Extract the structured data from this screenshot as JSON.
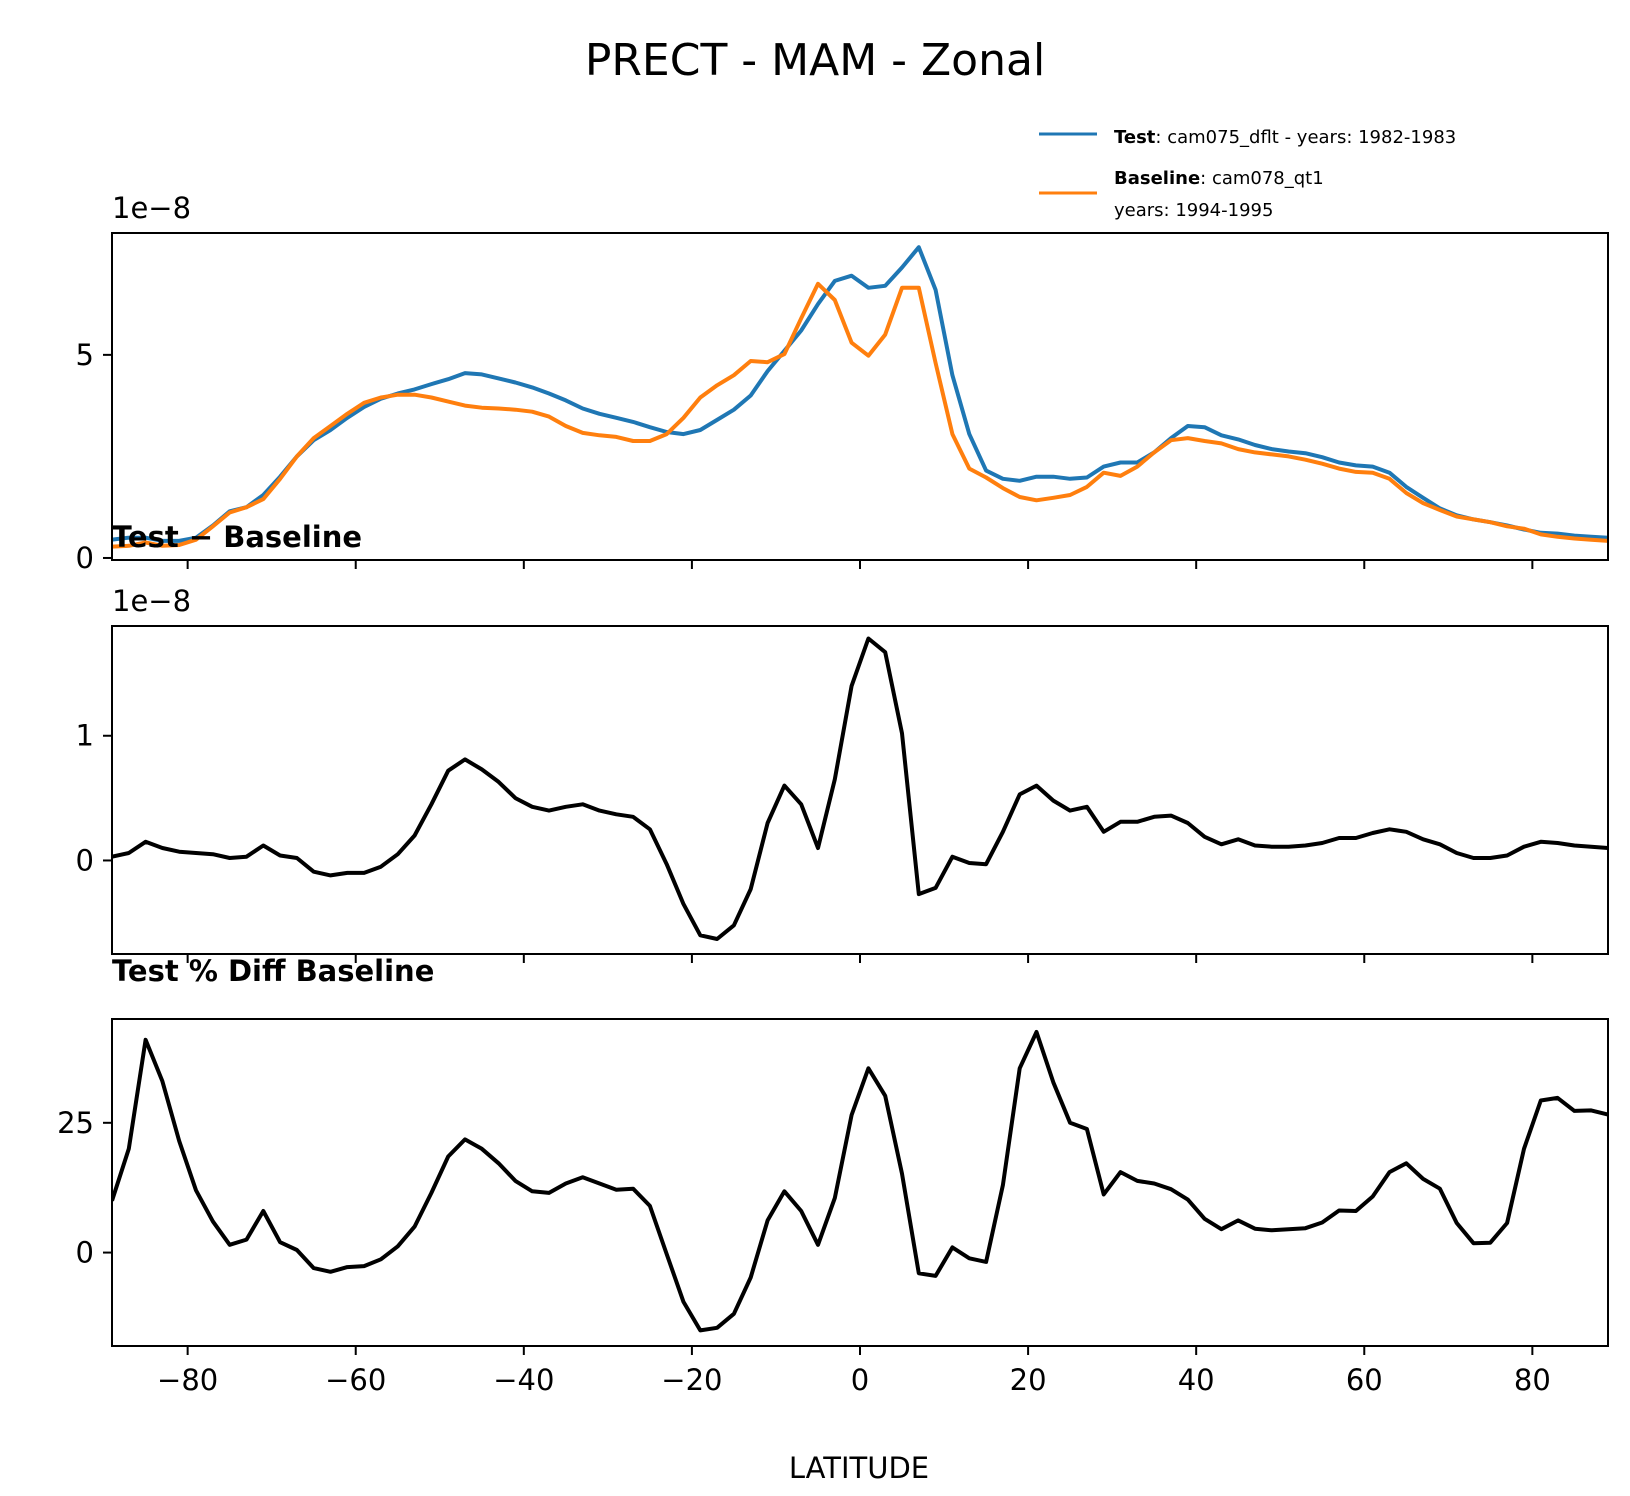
{
  "chart_data": [
    {
      "type": "line",
      "title": "PRECT - MAM - Zonal",
      "offset_label": "1e−8",
      "xlim": [
        -89,
        89
      ],
      "ylim": [
        -0.05,
        8.0
      ],
      "yticks": [
        0,
        5
      ],
      "ytick_labels": [
        "0",
        "5"
      ],
      "legend": {
        "position": "top-right",
        "entries": [
          {
            "bold": "Test",
            "rest": ": cam075_dflt - years: 1982-1983",
            "line2": "",
            "color": "#1f77b4"
          },
          {
            "bold": "Baseline",
            "rest": ": cam078_qt1",
            "line2": "years: 1994-1995",
            "color": "#ff7f0e"
          }
        ]
      },
      "x": [
        -89,
        -87,
        -85,
        -83,
        -81,
        -79,
        -77,
        -75,
        -73,
        -71,
        -69,
        -67,
        -65,
        -63,
        -61,
        -59,
        -57,
        -55,
        -53,
        -51,
        -49,
        -47,
        -45,
        -43,
        -41,
        -39,
        -37,
        -35,
        -33,
        -31,
        -29,
        -27,
        -25,
        -23,
        -21,
        -19,
        -17,
        -15,
        -13,
        -11,
        -9,
        -7,
        -5,
        -3,
        -1,
        1,
        3,
        5,
        7,
        9,
        11,
        13,
        15,
        17,
        19,
        21,
        23,
        25,
        27,
        29,
        31,
        33,
        35,
        37,
        39,
        41,
        43,
        45,
        47,
        49,
        51,
        53,
        55,
        57,
        59,
        61,
        63,
        65,
        67,
        69,
        71,
        73,
        75,
        77,
        79,
        81,
        83,
        85,
        87,
        89
      ],
      "series": [
        {
          "name": "Test",
          "color": "#1f77b4",
          "values": [
            0.45,
            0.5,
            0.5,
            0.42,
            0.42,
            0.5,
            0.8,
            1.15,
            1.25,
            1.55,
            2.0,
            2.5,
            2.9,
            3.15,
            3.45,
            3.72,
            3.92,
            4.05,
            4.15,
            4.28,
            4.4,
            4.55,
            4.52,
            4.42,
            4.32,
            4.2,
            4.05,
            3.88,
            3.68,
            3.55,
            3.45,
            3.35,
            3.22,
            3.1,
            3.05,
            3.15,
            3.4,
            3.65,
            4.0,
            4.6,
            5.1,
            5.6,
            6.25,
            6.82,
            6.95,
            6.65,
            6.7,
            7.15,
            7.65,
            6.6,
            4.5,
            3.05,
            2.15,
            1.95,
            1.9,
            2.0,
            2.0,
            1.95,
            1.98,
            2.25,
            2.35,
            2.35,
            2.6,
            2.95,
            3.25,
            3.22,
            3.02,
            2.92,
            2.78,
            2.68,
            2.62,
            2.58,
            2.48,
            2.35,
            2.28,
            2.25,
            2.1,
            1.75,
            1.48,
            1.22,
            1.05,
            0.95,
            0.88,
            0.8,
            0.7,
            0.62,
            0.6,
            0.55,
            0.52,
            0.5
          ]
        },
        {
          "name": "Baseline",
          "color": "#ff7f0e",
          "values": [
            0.28,
            0.3,
            0.38,
            0.3,
            0.32,
            0.45,
            0.78,
            1.12,
            1.25,
            1.45,
            1.95,
            2.5,
            2.95,
            3.25,
            3.55,
            3.82,
            3.95,
            4.02,
            4.02,
            3.95,
            3.85,
            3.75,
            3.7,
            3.68,
            3.65,
            3.6,
            3.48,
            3.25,
            3.08,
            3.02,
            2.98,
            2.88,
            2.88,
            3.05,
            3.45,
            3.95,
            4.25,
            4.5,
            4.85,
            4.82,
            5.02,
            5.9,
            6.75,
            6.35,
            5.3,
            4.98,
            5.5,
            6.65,
            6.65,
            4.8,
            3.05,
            2.2,
            1.98,
            1.72,
            1.5,
            1.42,
            1.48,
            1.55,
            1.75,
            2.1,
            2.02,
            2.25,
            2.6,
            2.9,
            2.95,
            2.88,
            2.82,
            2.68,
            2.6,
            2.55,
            2.5,
            2.42,
            2.32,
            2.2,
            2.12,
            2.1,
            1.95,
            1.6,
            1.35,
            1.18,
            1.02,
            0.95,
            0.88,
            0.78,
            0.72,
            0.58,
            0.52,
            0.48,
            0.45,
            0.42
          ]
        }
      ]
    },
    {
      "type": "line",
      "title": "Test − Baseline",
      "offset_label": "1e−8",
      "xlim": [
        -89,
        89
      ],
      "ylim": [
        -0.75,
        1.88
      ],
      "yticks": [
        0,
        1
      ],
      "ytick_labels": [
        "0",
        "1"
      ],
      "x": [
        -89,
        -87,
        -85,
        -83,
        -81,
        -79,
        -77,
        -75,
        -73,
        -71,
        -69,
        -67,
        -65,
        -63,
        -61,
        -59,
        -57,
        -55,
        -53,
        -51,
        -49,
        -47,
        -45,
        -43,
        -41,
        -39,
        -37,
        -35,
        -33,
        -31,
        -29,
        -27,
        -25,
        -23,
        -21,
        -19,
        -17,
        -15,
        -13,
        -11,
        -9,
        -7,
        -5,
        -3,
        -1,
        1,
        3,
        5,
        7,
        9,
        11,
        13,
        15,
        17,
        19,
        21,
        23,
        25,
        27,
        29,
        31,
        33,
        35,
        37,
        39,
        41,
        43,
        45,
        47,
        49,
        51,
        53,
        55,
        57,
        59,
        61,
        63,
        65,
        67,
        69,
        71,
        73,
        75,
        77,
        79,
        81,
        83,
        85,
        87,
        89
      ],
      "series": [
        {
          "name": "Test − Baseline",
          "color": "#000000",
          "values": [
            0.03,
            0.06,
            0.15,
            0.1,
            0.07,
            0.06,
            0.05,
            0.02,
            0.03,
            0.12,
            0.04,
            0.02,
            -0.09,
            -0.12,
            -0.1,
            -0.1,
            -0.05,
            0.05,
            0.2,
            0.45,
            0.72,
            0.81,
            0.73,
            0.63,
            0.5,
            0.43,
            0.4,
            0.43,
            0.45,
            0.4,
            0.37,
            0.35,
            0.25,
            -0.03,
            -0.35,
            -0.6,
            -0.63,
            -0.52,
            -0.23,
            0.3,
            0.6,
            0.45,
            0.1,
            0.65,
            1.4,
            1.78,
            1.67,
            1.02,
            -0.27,
            -0.22,
            0.03,
            -0.02,
            -0.03,
            0.23,
            0.53,
            0.6,
            0.48,
            0.4,
            0.43,
            0.23,
            0.31,
            0.31,
            0.35,
            0.36,
            0.3,
            0.19,
            0.13,
            0.17,
            0.12,
            0.11,
            0.11,
            0.12,
            0.14,
            0.18,
            0.18,
            0.22,
            0.25,
            0.23,
            0.17,
            0.13,
            0.06,
            0.02,
            0.02,
            0.04,
            0.11,
            0.15,
            0.14,
            0.12,
            0.11,
            0.1
          ]
        }
      ]
    },
    {
      "type": "line",
      "title": "Test % Diff Baseline",
      "xlabel": "LATITUDE",
      "xlim": [
        -89,
        89
      ],
      "ylim": [
        -18,
        45
      ],
      "yticks": [
        0,
        25
      ],
      "ytick_labels": [
        "0",
        "25"
      ],
      "xticks": [
        -80,
        -60,
        -40,
        -20,
        0,
        20,
        40,
        60,
        80
      ],
      "xtick_labels": [
        "−80",
        "−60",
        "−40",
        "−20",
        "0",
        "20",
        "40",
        "60",
        "80"
      ],
      "x": [
        -89,
        -87,
        -85,
        -83,
        -81,
        -79,
        -77,
        -75,
        -73,
        -71,
        -69,
        -67,
        -65,
        -63,
        -61,
        -59,
        -57,
        -55,
        -53,
        -51,
        -49,
        -47,
        -45,
        -43,
        -41,
        -39,
        -37,
        -35,
        -33,
        -31,
        -29,
        -27,
        -25,
        -23,
        -21,
        -19,
        -17,
        -15,
        -13,
        -11,
        -9,
        -7,
        -5,
        -3,
        -1,
        1,
        3,
        5,
        7,
        9,
        11,
        13,
        15,
        17,
        19,
        21,
        23,
        25,
        27,
        29,
        31,
        33,
        35,
        37,
        39,
        41,
        43,
        45,
        47,
        49,
        51,
        53,
        55,
        57,
        59,
        61,
        63,
        65,
        67,
        69,
        71,
        73,
        75,
        77,
        79,
        81,
        83,
        85,
        87,
        89
      ],
      "series": [
        {
          "name": "Test % Diff Baseline",
          "color": "#000000",
          "values": [
            10,
            20,
            41,
            33,
            21.5,
            12,
            6,
            1.5,
            2.5,
            8,
            2,
            0.5,
            -3,
            -3.7,
            -2.8,
            -2.6,
            -1.3,
            1.2,
            5,
            11.5,
            18.5,
            21.8,
            20,
            17.2,
            13.8,
            11.8,
            11.5,
            13.3,
            14.5,
            13.3,
            12.1,
            12.3,
            9,
            -0.3,
            -9.5,
            -15,
            -14.5,
            -11.8,
            -4.8,
            6.2,
            11.8,
            8,
            1.5,
            10.5,
            26.5,
            35.5,
            30.2,
            15.2,
            -4,
            -4.5,
            1,
            -1.1,
            -1.8,
            13,
            35.5,
            42.5,
            32.8,
            25,
            23.8,
            11.2,
            15.5,
            13.8,
            13.3,
            12.2,
            10.2,
            6.5,
            4.5,
            6.2,
            4.6,
            4.3,
            4.5,
            4.7,
            5.8,
            8.1,
            8,
            10.8,
            15.5,
            17.2,
            14.2,
            12.3,
            5.7,
            1.8,
            1.9,
            5.7,
            20,
            29.3,
            29.8,
            27.3,
            27.4,
            26.6
          ]
        }
      ]
    }
  ]
}
